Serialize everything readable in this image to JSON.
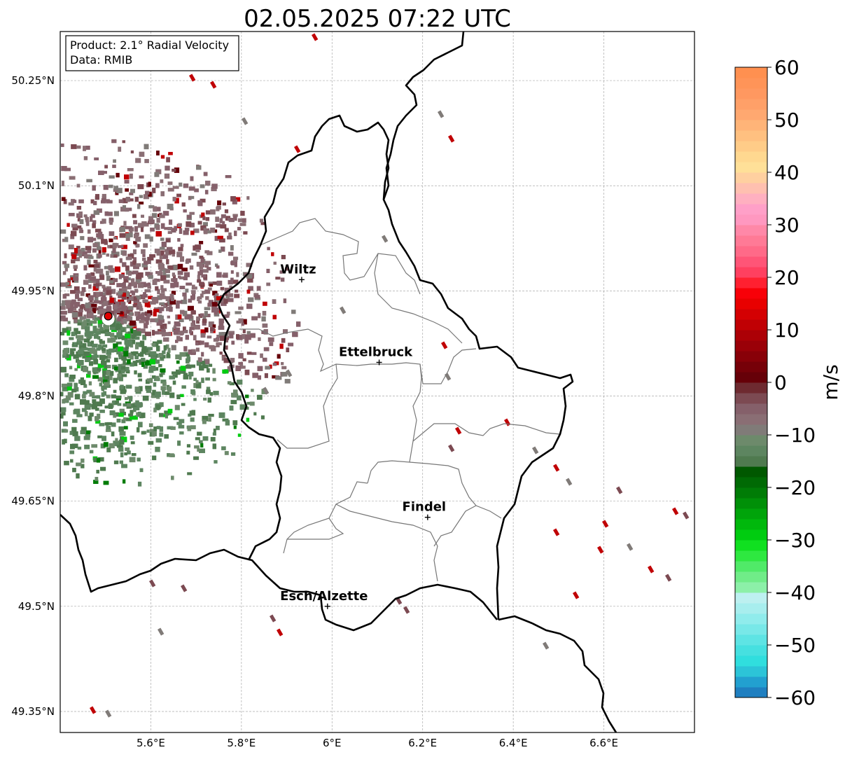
{
  "title": "02.05.2025 07:22 UTC",
  "info_box": {
    "product": "Product: 2.1° Radial Velocity",
    "data": "Data: RMIB"
  },
  "map": {
    "lon_range": [
      5.4,
      6.8
    ],
    "lat_range": [
      49.32,
      50.32
    ],
    "lon_ticks": [
      {
        "value": 5.6,
        "label": "5.6°E"
      },
      {
        "value": 5.8,
        "label": "5.8°E"
      },
      {
        "value": 6.0,
        "label": "6°E"
      },
      {
        "value": 6.2,
        "label": "6.2°E"
      },
      {
        "value": 6.4,
        "label": "6.4°E"
      },
      {
        "value": 6.6,
        "label": "6.6°E"
      }
    ],
    "lat_ticks": [
      {
        "value": 50.25,
        "label": "50.25°N"
      },
      {
        "value": 50.1,
        "label": "50.1°N"
      },
      {
        "value": 49.95,
        "label": "49.95°N"
      },
      {
        "value": 49.8,
        "label": "49.8°N"
      },
      {
        "value": 49.65,
        "label": "49.65°N"
      },
      {
        "value": 49.5,
        "label": "49.5°N"
      },
      {
        "value": 49.35,
        "label": "49.35°N"
      }
    ],
    "grid": true,
    "radar_site": {
      "lon": 5.506,
      "lat": 49.914
    },
    "cities": [
      {
        "name": "Wiltz",
        "lon": 5.933,
        "lat": 49.966
      },
      {
        "name": "Ettelbruck",
        "lon": 6.104,
        "lat": 49.848
      },
      {
        "name": "Findel",
        "lon": 6.211,
        "lat": 49.627
      },
      {
        "name": "Esch/Alzette",
        "lon": 5.99,
        "lat": 49.5
      }
    ]
  },
  "colorbar": {
    "label": "m/s",
    "min": -60,
    "max": 60,
    "ticks": [
      {
        "value": 60,
        "label": "60"
      },
      {
        "value": 50,
        "label": "50"
      },
      {
        "value": 40,
        "label": "40"
      },
      {
        "value": 30,
        "label": "30"
      },
      {
        "value": 20,
        "label": "20"
      },
      {
        "value": 10,
        "label": "10"
      },
      {
        "value": 0,
        "label": "0"
      },
      {
        "value": -10,
        "label": "−10"
      },
      {
        "value": -20,
        "label": "−20"
      },
      {
        "value": -30,
        "label": "−30"
      },
      {
        "value": -40,
        "label": "−40"
      },
      {
        "value": -50,
        "label": "−50"
      },
      {
        "value": -60,
        "label": "−60"
      }
    ],
    "colors": [
      "#1f7fc0",
      "#22a0d0",
      "#2cc4d8",
      "#30dede",
      "#46e0e0",
      "#5ee4e4",
      "#78e8e8",
      "#90ecec",
      "#a8eeee",
      "#bdf0f0",
      "#8cf0a8",
      "#70ec88",
      "#50ea68",
      "#2ee840",
      "#10e020",
      "#00cc10",
      "#00b80c",
      "#00a40a",
      "#009008",
      "#007c06",
      "#006a04",
      "#005800",
      "#4f7a4f",
      "#5d8560",
      "#6d8a6b",
      "#807b78",
      "#8a6e74",
      "#85606a",
      "#7c4a52",
      "#6e2a30",
      "#660008",
      "#760008",
      "#880008",
      "#9a0008",
      "#ac0006",
      "#c00004",
      "#d40002",
      "#e80000",
      "#f80008",
      "#ff2030",
      "#ff4060",
      "#ff5577",
      "#ff6a88",
      "#ff7a96",
      "#ff88a8",
      "#ff98c0",
      "#ffa0c8",
      "#ffb0c0",
      "#ffc0b0",
      "#ffd0a0",
      "#ffe098",
      "#ffd890",
      "#ffcc88",
      "#ffc080",
      "#ffb478",
      "#ffa870",
      "#ffa068",
      "#ff9860",
      "#ff9458",
      "#ff9050"
    ]
  },
  "velocity_field": {
    "units": "m/s",
    "outbound_color": "#85606a",
    "inbound_color": "#5d8560",
    "strong_outbound_color": "#c00004",
    "strong_inbound_color": "#00cc10"
  }
}
